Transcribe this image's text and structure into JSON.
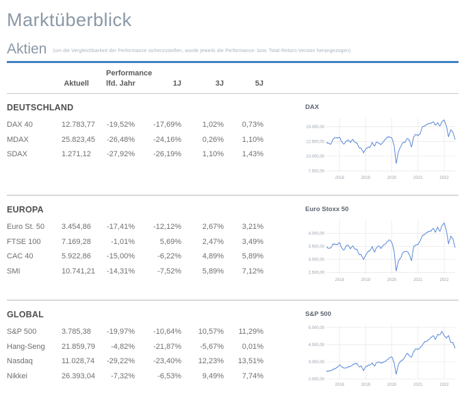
{
  "page": {
    "title": "Marktüberblick"
  },
  "aktien": {
    "title": "Aktien",
    "note": "(um die Vergleichbarkeit der Performance sicherzustellen, wurde jeweils die Performance- bzw. Total-Return-Version herangezogen)"
  },
  "table": {
    "group_header": "Performance",
    "columns": [
      "Aktuell",
      "lfd. Jahr",
      "1J",
      "3J",
      "5J"
    ]
  },
  "sections": [
    {
      "title": "DEUTSCHLAND",
      "rows": [
        {
          "name": "DAX 40",
          "values": [
            "12.783,77",
            "-19,52%",
            "-17,69%",
            "1,02%",
            "0,73%"
          ]
        },
        {
          "name": "MDAX",
          "values": [
            "25.823,45",
            "-26,48%",
            "-24,16%",
            "0,26%",
            "1,10%"
          ]
        },
        {
          "name": "SDAX",
          "values": [
            "1.271,12",
            "-27,92%",
            "-26,19%",
            "1,10%",
            "1,43%"
          ]
        }
      ]
    },
    {
      "title": "EUROPA",
      "rows": [
        {
          "name": "Euro St. 50",
          "values": [
            "3.454,86",
            "-17,41%",
            "-12,12%",
            "2,67%",
            "3,21%"
          ]
        },
        {
          "name": "FTSE 100",
          "values": [
            "7.169,28",
            "-1,01%",
            "5,69%",
            "2,47%",
            "3,49%"
          ]
        },
        {
          "name": "CAC 40",
          "values": [
            "5.922,86",
            "-15,00%",
            "-6,22%",
            "4,89%",
            "5,89%"
          ]
        },
        {
          "name": "SMI",
          "values": [
            "10.741,21",
            "-14,31%",
            "-7,52%",
            "5,89%",
            "7,12%"
          ]
        }
      ]
    },
    {
      "title": "GLOBAL",
      "rows": [
        {
          "name": "S&P 500",
          "values": [
            "3.785,38",
            "-19,97%",
            "-10,64%",
            "10,57%",
            "11,29%"
          ]
        },
        {
          "name": "Hang-Seng",
          "values": [
            "21.859,79",
            "-4,82%",
            "-21,87%",
            "-5,67%",
            "0,01%"
          ]
        },
        {
          "name": "Nasdaq",
          "values": [
            "11.028,74",
            "-29,22%",
            "-23,40%",
            "12,23%",
            "13,51%"
          ]
        },
        {
          "name": "Nikkei",
          "values": [
            "26.393,04",
            "-7,32%",
            "-6,53%",
            "9,49%",
            "7,74%"
          ]
        }
      ]
    }
  ],
  "colors": {
    "accent_blue": "#3f80c1",
    "chart_line": "#5585d6",
    "grid": "#e6e6e6",
    "divider": "#d8d8d8"
  },
  "chart_data": [
    {
      "type": "line",
      "title": "DAX",
      "x_range": [
        "2017-07",
        "2022-06"
      ],
      "xticks": [
        {
          "label": "2018",
          "i": 6
        },
        {
          "label": "2019",
          "i": 18
        },
        {
          "label": "2020",
          "i": 30
        },
        {
          "label": "2021",
          "i": 42
        },
        {
          "label": "2022",
          "i": 54
        }
      ],
      "yticks": [
        {
          "v": 15000,
          "label": "15.000,00"
        },
        {
          "v": 12500,
          "label": "12.500,00"
        },
        {
          "v": 10000,
          "label": "10.000,00"
        },
        {
          "v": 7500,
          "label": "7.500,00"
        }
      ],
      "ylim": [
        7300,
        16500
      ],
      "values": [
        12300,
        12200,
        12050,
        12900,
        13150,
        13050,
        13200,
        12450,
        12050,
        12550,
        12750,
        12300,
        12850,
        12350,
        12250,
        11450,
        11300,
        10550,
        11150,
        11500,
        11550,
        12350,
        11700,
        12400,
        12150,
        11950,
        12450,
        12900,
        13250,
        13230,
        13050,
        11900,
        8750,
        10800,
        11600,
        12300,
        12300,
        13000,
        12750,
        11550,
        13300,
        13700,
        13450,
        13800,
        15000,
        15150,
        15400,
        15550,
        15550,
        15850,
        15250,
        15700,
        15100,
        15900,
        16100,
        15100,
        13300,
        14500,
        14100,
        12800
      ]
    },
    {
      "type": "line",
      "title": "Euro Stoxx 50",
      "x_range": [
        "2017-07",
        "2022-06"
      ],
      "xticks": [
        {
          "label": "2018",
          "i": 6
        },
        {
          "label": "2019",
          "i": 18
        },
        {
          "label": "2020",
          "i": 30
        },
        {
          "label": "2021",
          "i": 42
        },
        {
          "label": "2022",
          "i": 54
        }
      ],
      "yticks": [
        {
          "v": 4000,
          "label": "4.000,00"
        },
        {
          "v": 3500,
          "label": "3.500,00"
        },
        {
          "v": 3000,
          "label": "3.000,00"
        },
        {
          "v": 2500,
          "label": "2.500,00"
        }
      ],
      "ylim": [
        2430,
        4520
      ],
      "values": [
        3480,
        3430,
        3450,
        3600,
        3580,
        3560,
        3650,
        3440,
        3360,
        3520,
        3550,
        3400,
        3520,
        3400,
        3390,
        3200,
        3170,
        2990,
        3150,
        3300,
        3350,
        3500,
        3280,
        3450,
        3520,
        3420,
        3550,
        3600,
        3700,
        3750,
        3640,
        3330,
        2550,
        2950,
        3050,
        3250,
        3300,
        3300,
        3200,
        2950,
        3500,
        3550,
        3570,
        3710,
        3920,
        3970,
        4040,
        4080,
        4090,
        4200,
        4050,
        4250,
        4080,
        4300,
        4400,
        4100,
        3600,
        3900,
        3800,
        3450
      ]
    },
    {
      "type": "line",
      "title": "S&P 500",
      "x_range": [
        "2017-07",
        "2022-06"
      ],
      "xticks": [
        {
          "label": "2018",
          "i": 6
        },
        {
          "label": "2019",
          "i": 18
        },
        {
          "label": "2020",
          "i": 30
        },
        {
          "label": "2021",
          "i": 42
        },
        {
          "label": "2022",
          "i": 54
        }
      ],
      "yticks": [
        {
          "v": 5000,
          "label": "5.000,00"
        },
        {
          "v": 4000,
          "label": "4.000,00"
        },
        {
          "v": 3000,
          "label": "3.000,00"
        },
        {
          "v": 2000,
          "label": "2.000,00"
        }
      ],
      "ylim": [
        2000,
        5150
      ],
      "values": [
        2430,
        2470,
        2500,
        2560,
        2600,
        2670,
        2820,
        2710,
        2650,
        2650,
        2700,
        2720,
        2810,
        2900,
        2910,
        2710,
        2760,
        2480,
        2700,
        2780,
        2830,
        2940,
        2750,
        2940,
        2990,
        2920,
        2980,
        3040,
        3140,
        3230,
        3280,
        2950,
        2280,
        2870,
        3040,
        3100,
        3270,
        3500,
        3360,
        3270,
        3620,
        3760,
        3710,
        3810,
        3970,
        4180,
        4200,
        4300,
        4400,
        4520,
        4300,
        4600,
        4570,
        4770,
        4510,
        4370,
        4530,
        4130,
        4130,
        3785
      ]
    }
  ]
}
